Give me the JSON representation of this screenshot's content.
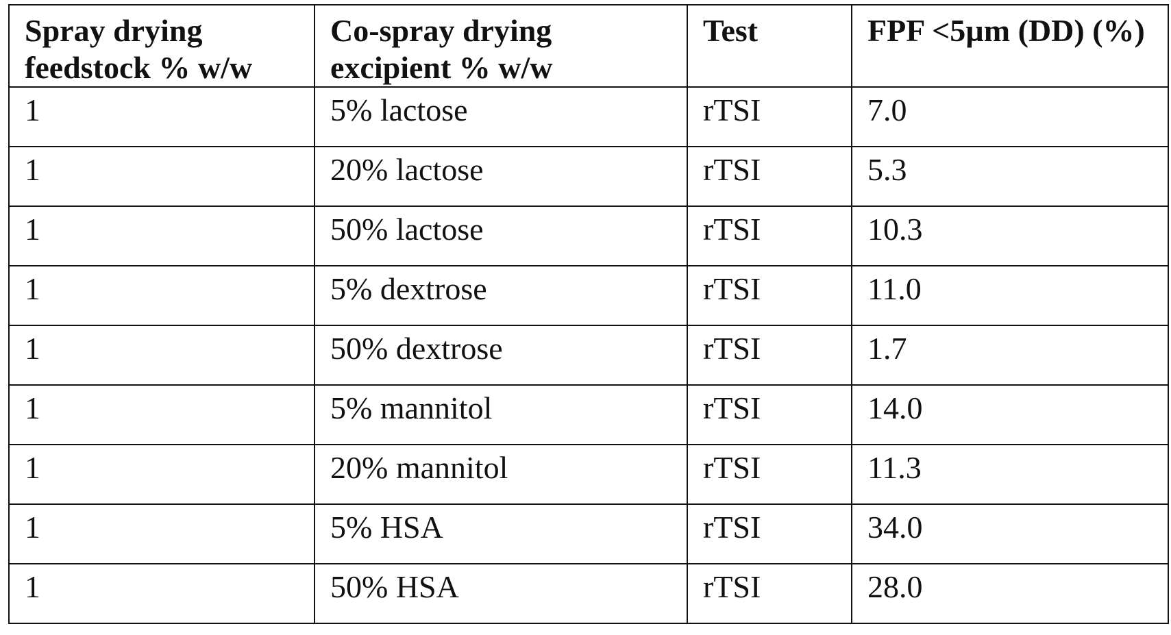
{
  "table": {
    "headers": [
      "Spray drying feedstock % w/w",
      "Co-spray drying excipient % w/w",
      "Test",
      "FPF <5µm (DD) (%)"
    ],
    "rows": [
      [
        "1",
        "5% lactose",
        "rTSI",
        "7.0"
      ],
      [
        "1",
        "20% lactose",
        "rTSI",
        "5.3"
      ],
      [
        "1",
        "50% lactose",
        "rTSI",
        "10.3"
      ],
      [
        "1",
        "5% dextrose",
        "rTSI",
        "11.0"
      ],
      [
        "1",
        "50% dextrose",
        "rTSI",
        "1.7"
      ],
      [
        "1",
        "5% mannitol",
        "rTSI",
        "14.0"
      ],
      [
        "1",
        "20% mannitol",
        "rTSI",
        "11.3"
      ],
      [
        "1",
        "5% HSA",
        "rTSI",
        "34.0"
      ],
      [
        "1",
        "50% HSA",
        "rTSI",
        "28.0"
      ]
    ]
  }
}
